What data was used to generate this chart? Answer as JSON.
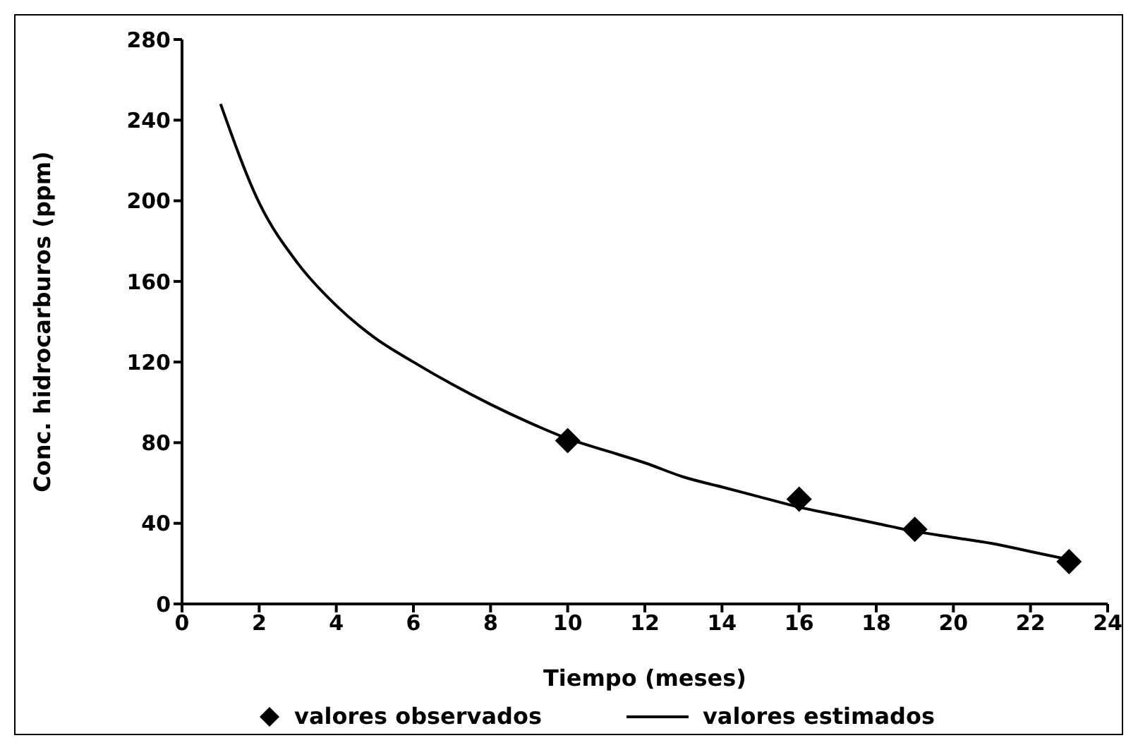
{
  "chart_data": {
    "type": "line",
    "xlabel": "Tiempo (meses)",
    "ylabel": "Conc. hidrocarburos (ppm)",
    "xlim": [
      0,
      24
    ],
    "xticks": [
      0,
      2,
      4,
      6,
      8,
      10,
      12,
      14,
      16,
      18,
      20,
      22,
      24
    ],
    "ylim": [
      0,
      280
    ],
    "yticks": [
      0,
      40,
      80,
      120,
      160,
      200,
      240,
      280
    ],
    "grid": false,
    "legend": "bottom",
    "series": [
      {
        "name": "valores observados",
        "type": "scatter",
        "marker": "diamond",
        "color": "#000000",
        "x": [
          10,
          16,
          19,
          23
        ],
        "values": [
          81,
          52,
          37,
          21
        ]
      },
      {
        "name": "valores estimados",
        "line_style": "solid",
        "color": "#000000",
        "x": [
          1,
          2,
          3,
          4,
          5,
          6,
          7,
          8,
          9,
          10,
          11,
          12,
          13,
          14,
          15,
          16,
          17,
          18,
          19,
          20,
          21,
          22,
          23
        ],
        "values": [
          248,
          199,
          169,
          148,
          132,
          120,
          109,
          99,
          90,
          82,
          76,
          70,
          63,
          58,
          53,
          48,
          44,
          40,
          36,
          33,
          30,
          26,
          22
        ]
      }
    ]
  }
}
